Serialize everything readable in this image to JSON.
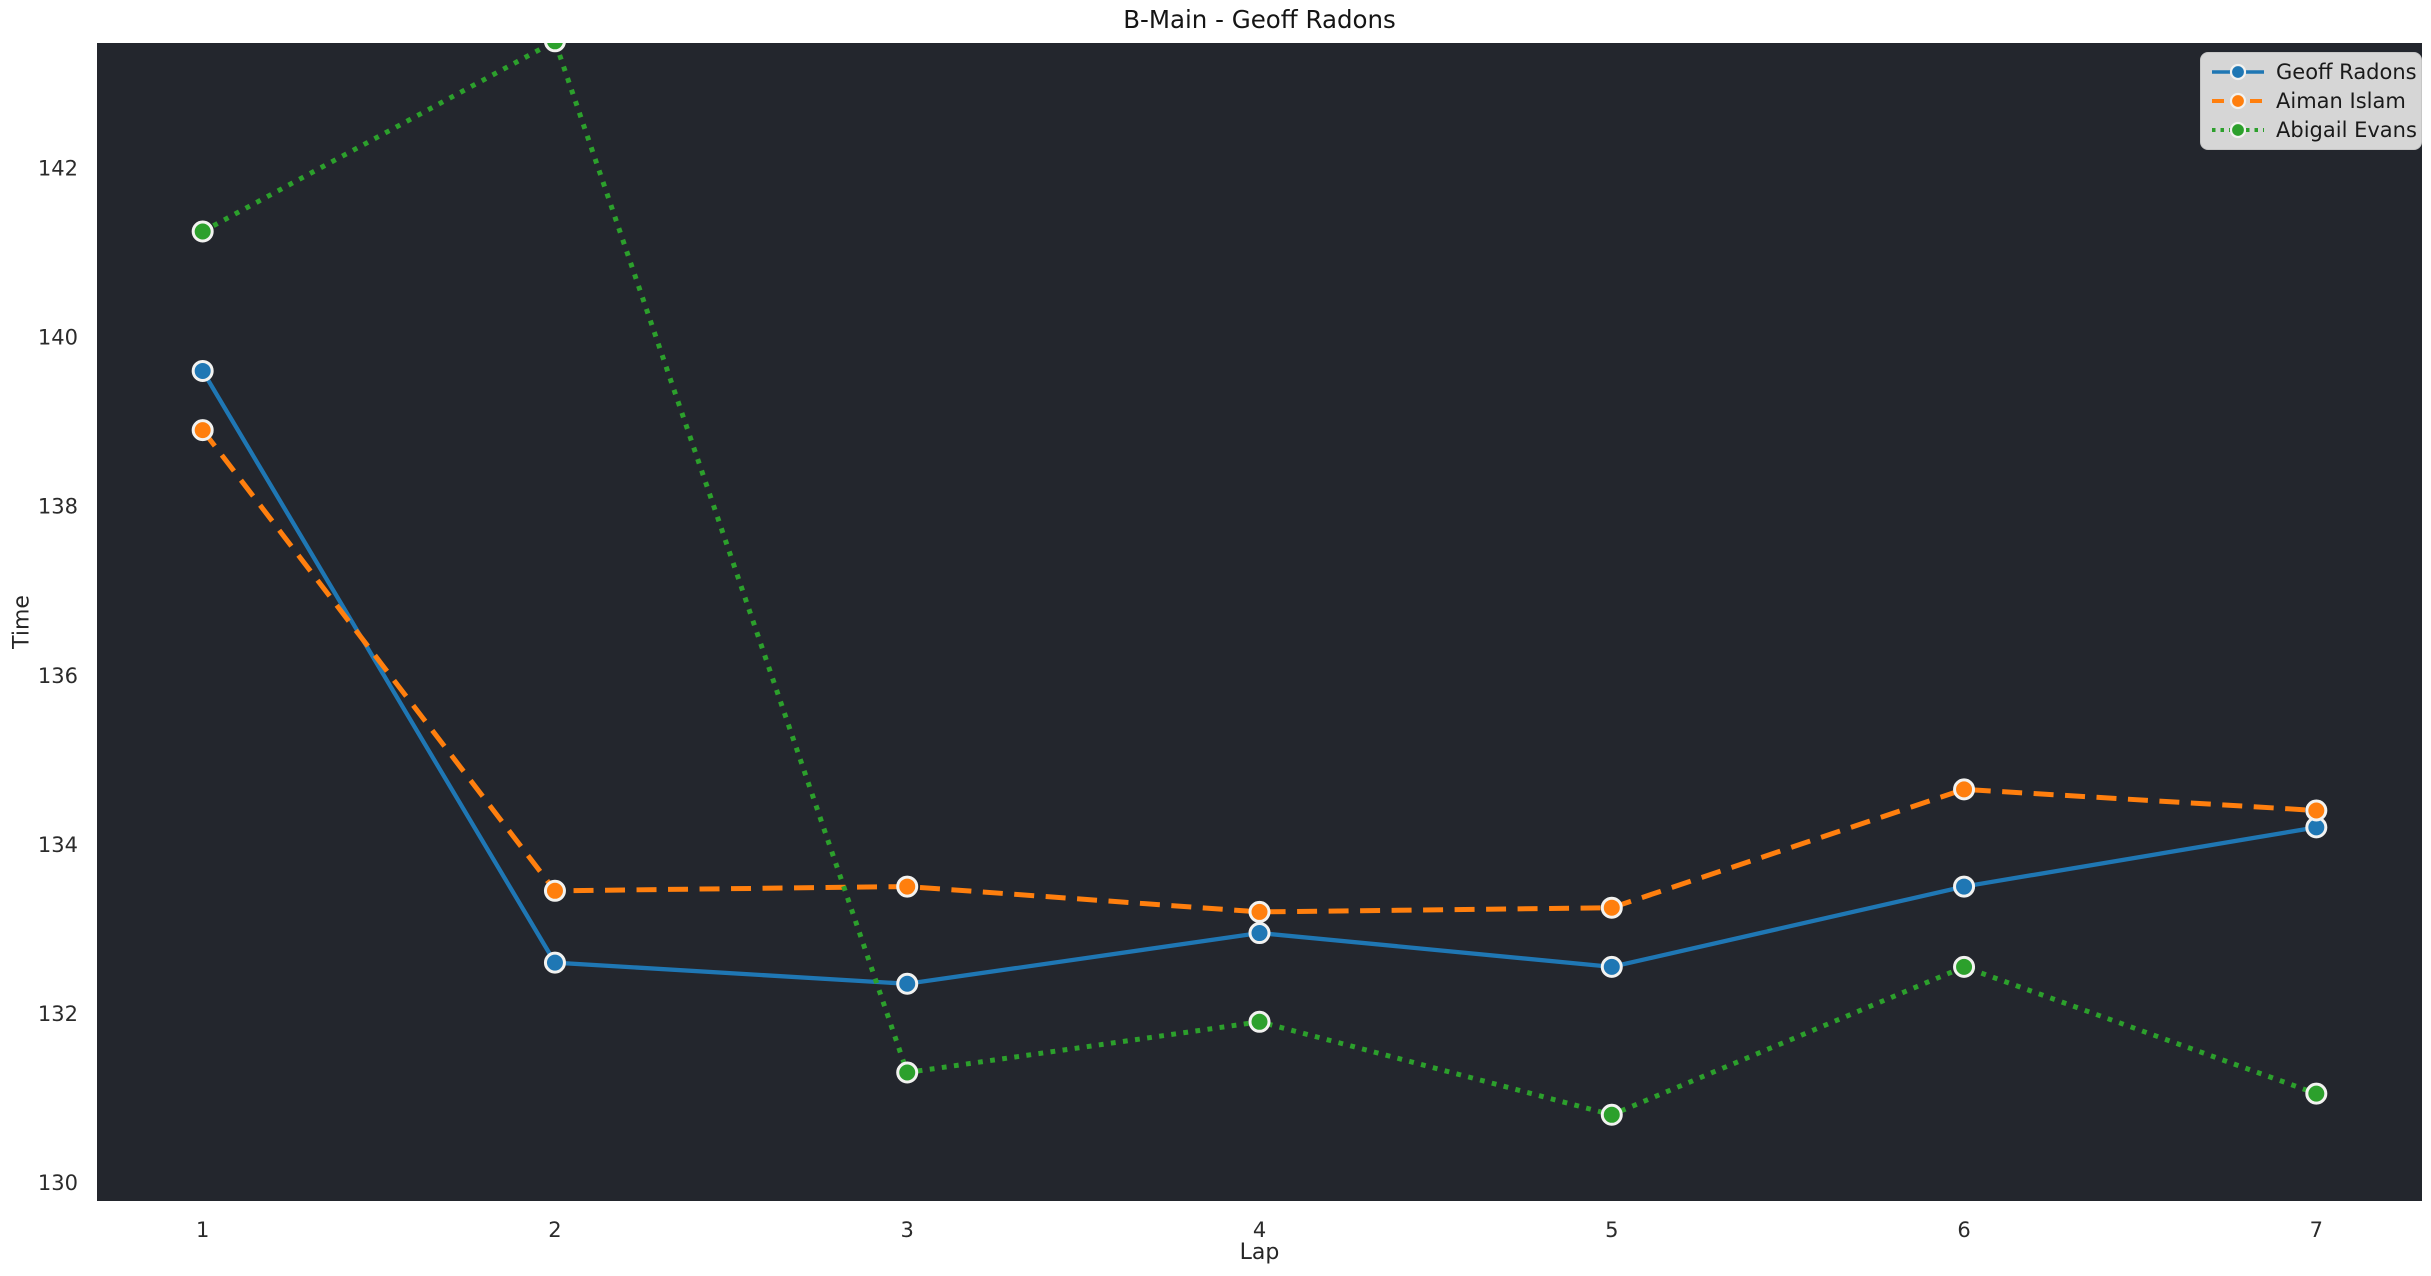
{
  "chart_data": {
    "type": "line",
    "title": "B-Main - Geoff Radons",
    "xlabel": "Lap",
    "ylabel": "Time",
    "x": [
      1,
      2,
      3,
      4,
      5,
      6,
      7
    ],
    "xticks": [
      1,
      2,
      3,
      4,
      5,
      6,
      7
    ],
    "yticks": [
      130,
      132,
      134,
      136,
      138,
      140,
      142
    ],
    "xlim": [
      0.7,
      7.3
    ],
    "ylim": [
      129.78,
      143.48
    ],
    "grid": false,
    "plot_background": "#23262d",
    "figure_background": "#ffffff",
    "text_color": "#262626",
    "marker_edge_color": "#f2f2f0",
    "legend": {
      "position": "upper-right",
      "background": "#d6d6d6",
      "border_color": "#c6c6c6"
    },
    "series": [
      {
        "name": "Geoff Radons",
        "color": "#1f77b4",
        "line_style": "solid",
        "values": [
          139.6,
          132.6,
          132.35,
          132.95,
          132.55,
          133.5,
          134.2
        ]
      },
      {
        "name": "Aiman Islam",
        "color": "#ff7f0e",
        "line_style": "dashed",
        "values": [
          138.9,
          133.45,
          133.5,
          133.2,
          133.25,
          134.65,
          134.4
        ]
      },
      {
        "name": "Abigail Evans",
        "color": "#2ca02c",
        "line_style": "dotted",
        "values": [
          141.25,
          143.5,
          131.3,
          131.9,
          130.8,
          132.55,
          131.05
        ]
      }
    ]
  }
}
